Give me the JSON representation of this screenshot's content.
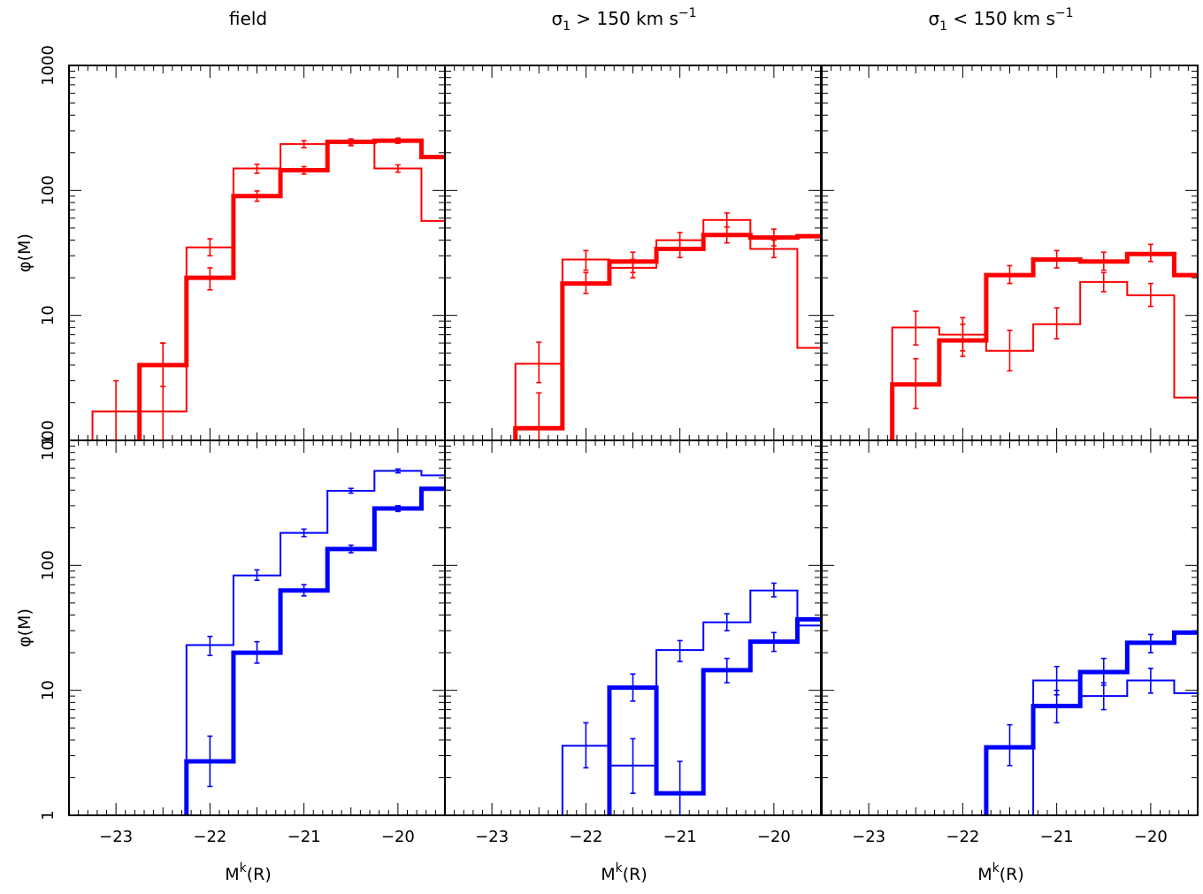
{
  "chart_data": {
    "type": "step-histogram-grid",
    "layout": {
      "rows": 2,
      "cols": 3
    },
    "x_range": [
      -23.5,
      -19.5
    ],
    "y_range": [
      1,
      1000
    ],
    "y_scale": "log",
    "x_ticks": [
      -23,
      -22,
      -21,
      -20
    ],
    "y_ticks": [
      1,
      10,
      100,
      1000
    ],
    "column_titles": [
      {
        "main": "field",
        "sub": "",
        "rest": "",
        "sup": ""
      },
      {
        "main": "σ",
        "sub": "1",
        "rest": " > 150 km s",
        "sup": "−1"
      },
      {
        "main": "σ",
        "sub": "1",
        "rest": " < 150 km s",
        "sup": "−1"
      }
    ],
    "xlabel": {
      "main": "M",
      "sup": "k",
      "rest": "(R)"
    },
    "ylabel": "φ(M)",
    "colors": {
      "top": "#ff0000",
      "bottom": "#0000ff"
    },
    "panels": [
      {
        "row": 0,
        "col": 0,
        "series": [
          {
            "weight": "thin",
            "edges": [
              -23.25,
              -22.75,
              -22.25,
              -21.75,
              -21.25,
              -20.75,
              -20.25,
              -19.75,
              -19.5
            ],
            "values": [
              1.7,
              1.7,
              35,
              150,
              235,
              240,
              150,
              57
            ],
            "errors": [
              [
                -23.0,
                1.7,
                1.0,
                3.0
              ],
              [
                -22.5,
                1.7,
                0.6,
                6.0
              ],
              [
                -22.0,
                35,
                30,
                41
              ],
              [
                -21.5,
                150,
                137,
                162
              ],
              [
                -21.0,
                235,
                220,
                250
              ],
              [
                -20.5,
                240,
                228,
                252
              ],
              [
                -20.0,
                150,
                140,
                160
              ]
            ]
          },
          {
            "weight": "thick",
            "edges": [
              -23.25,
              -22.75,
              -22.25,
              -21.75,
              -21.25,
              -20.75,
              -20.25,
              -19.75,
              -19.5
            ],
            "values": [
              0.5,
              4,
              20,
              90,
              145,
              245,
              250,
              185
            ],
            "errors": [
              [
                -22.5,
                4,
                2.7,
                6.0
              ],
              [
                -22.0,
                20,
                16,
                24
              ],
              [
                -21.5,
                90,
                82,
                99
              ],
              [
                -21.0,
                145,
                135,
                155
              ],
              [
                -20.5,
                245,
                230,
                258
              ],
              [
                -20.0,
                250,
                238,
                262
              ]
            ]
          }
        ]
      },
      {
        "row": 0,
        "col": 1,
        "series": [
          {
            "weight": "thin",
            "edges": [
              -22.75,
              -22.25,
              -21.75,
              -21.25,
              -20.75,
              -20.25,
              -19.75,
              -19.5
            ],
            "values": [
              4.1,
              28,
              24,
              40,
              58,
              34,
              5.5
            ],
            "errors": [
              [
                -22.5,
                4.1,
                2.9,
                6.1
              ],
              [
                -22.0,
                28,
                23,
                33
              ],
              [
                -21.5,
                24,
                20,
                28
              ],
              [
                -21.0,
                40,
                35,
                46
              ],
              [
                -20.5,
                58,
                51,
                66
              ],
              [
                -20.0,
                34,
                29,
                40
              ]
            ]
          },
          {
            "weight": "thick",
            "edges": [
              -22.75,
              -22.25,
              -21.75,
              -21.25,
              -20.75,
              -20.25,
              -19.75,
              -19.5
            ],
            "values": [
              1.25,
              18,
              27,
              34,
              44,
              42,
              43
            ],
            "errors": [
              [
                -22.5,
                1.25,
                0.8,
                2.4
              ],
              [
                -22.0,
                18,
                15,
                22
              ],
              [
                -21.5,
                27,
                22,
                32
              ],
              [
                -21.0,
                34,
                29,
                40
              ],
              [
                -20.5,
                44,
                38,
                51
              ],
              [
                -20.0,
                42,
                36,
                49
              ]
            ]
          }
        ]
      },
      {
        "row": 0,
        "col": 2,
        "series": [
          {
            "weight": "thin",
            "edges": [
              -22.75,
              -22.25,
              -21.75,
              -21.25,
              -20.75,
              -20.25,
              -19.75,
              -19.5
            ],
            "values": [
              8,
              7,
              5.2,
              8.5,
              18.5,
              14.5,
              2.2
            ],
            "errors": [
              [
                -22.5,
                8,
                5.8,
                10.8
              ],
              [
                -22.0,
                7,
                5.2,
                9.6
              ],
              [
                -21.5,
                5.2,
                3.6,
                7.6
              ],
              [
                -21.0,
                8.5,
                6.5,
                11.5
              ],
              [
                -20.5,
                18.5,
                15.5,
                22
              ],
              [
                -20.0,
                14.5,
                11.8,
                18
              ]
            ]
          },
          {
            "weight": "thick",
            "edges": [
              -22.75,
              -22.25,
              -21.75,
              -21.25,
              -20.75,
              -20.25,
              -19.75,
              -19.5
            ],
            "values": [
              2.8,
              6.3,
              21,
              28,
              27,
              31,
              21
            ],
            "errors": [
              [
                -22.5,
                2.8,
                1.8,
                4.5
              ],
              [
                -22.0,
                6.3,
                4.7,
                8.5
              ],
              [
                -21.5,
                21,
                18,
                25
              ],
              [
                -21.0,
                28,
                24,
                33
              ],
              [
                -20.5,
                27,
                23,
                32
              ],
              [
                -20.0,
                31,
                27,
                37
              ]
            ]
          }
        ]
      },
      {
        "row": 1,
        "col": 0,
        "series": [
          {
            "weight": "thin",
            "edges": [
              -22.25,
              -21.75,
              -21.25,
              -20.75,
              -20.25,
              -19.75,
              -19.5
            ],
            "values": [
              23,
              83,
              182,
              395,
              570,
              525
            ],
            "errors": [
              [
                -22.0,
                23,
                19,
                27
              ],
              [
                -21.5,
                83,
                76,
                92
              ],
              [
                -21.0,
                182,
                170,
                195
              ],
              [
                -20.5,
                395,
                378,
                413
              ],
              [
                -20.0,
                570,
                550,
                590
              ]
            ]
          },
          {
            "weight": "thick",
            "edges": [
              -22.25,
              -21.75,
              -21.25,
              -20.75,
              -20.25,
              -19.75,
              -19.5
            ],
            "values": [
              2.7,
              20,
              63,
              135,
              285,
              410
            ],
            "errors": [
              [
                -22.0,
                2.7,
                1.7,
                4.3
              ],
              [
                -21.5,
                20,
                16.5,
                24.5
              ],
              [
                -21.0,
                63,
                57,
                70
              ],
              [
                -20.5,
                135,
                126,
                145
              ],
              [
                -20.0,
                285,
                270,
                300
              ]
            ]
          }
        ]
      },
      {
        "row": 1,
        "col": 1,
        "series": [
          {
            "weight": "thin",
            "edges": [
              -22.25,
              -21.75,
              -21.25,
              -20.75,
              -20.25,
              -19.75,
              -19.5
            ],
            "values": [
              3.6,
              2.5,
              21,
              35,
              63,
              33
            ],
            "errors": [
              [
                -22.0,
                3.6,
                2.4,
                5.5
              ],
              [
                -21.5,
                2.5,
                1.5,
                4.1
              ],
              [
                -21.0,
                21,
                17,
                25
              ],
              [
                -20.5,
                35,
                30,
                41
              ],
              [
                -20.0,
                63,
                56,
                72
              ]
            ]
          },
          {
            "weight": "thick",
            "edges": [
              -21.75,
              -21.25,
              -20.75,
              -20.25,
              -19.75,
              -19.5
            ],
            "values": [
              10.5,
              1.5,
              14.5,
              24.5,
              37
            ],
            "errors": [
              [
                -21.5,
                10.5,
                8.2,
                13.5
              ],
              [
                -21.0,
                1.5,
                1.0,
                2.7
              ],
              [
                -20.5,
                14.5,
                11.5,
                18
              ],
              [
                -20.0,
                24.5,
                20.5,
                29
              ]
            ]
          }
        ]
      },
      {
        "row": 1,
        "col": 2,
        "series": [
          {
            "weight": "thin",
            "edges": [
              -21.25,
              -20.75,
              -20.25,
              -19.75,
              -19.5
            ],
            "values": [
              12,
              9,
              12,
              9.5
            ],
            "errors": [
              [
                -21.0,
                12,
                9.2,
                15.5
              ],
              [
                -20.5,
                9,
                7,
                11.5
              ],
              [
                -20.0,
                12,
                9.5,
                15
              ]
            ]
          },
          {
            "weight": "thick",
            "edges": [
              -21.75,
              -21.25,
              -20.75,
              -20.25,
              -19.75,
              -19.5
            ],
            "values": [
              3.5,
              7.5,
              14,
              24,
              29
            ],
            "errors": [
              [
                -21.5,
                3.5,
                2.5,
                5.3
              ],
              [
                -21.0,
                7.5,
                5.5,
                10
              ],
              [
                -20.5,
                14,
                11,
                18
              ],
              [
                -20.0,
                24,
                20,
                28
              ]
            ]
          }
        ]
      }
    ]
  }
}
